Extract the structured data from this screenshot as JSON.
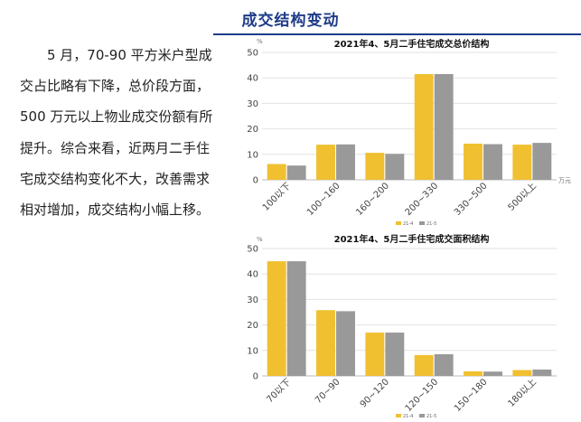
{
  "page": {
    "title": "成交结构变动",
    "paragraph": "5 月，70-90 平方米户型成交占比略有下降，总价段方面，500 万元以上物业成交份额有所提升。综合来看，近两月二手住宅成交结构变化不大，改善需求相对增加，成交结构小幅上移。"
  },
  "colors": {
    "title": "#1f3c88",
    "series_2021_4": "#f0c030",
    "series_2021_5": "#999999"
  },
  "chart_data": [
    {
      "type": "bar",
      "title": "2021年4、5月二手住宅成交总价结构",
      "yunit": "%",
      "xunit": "万元",
      "categories": [
        "100以下",
        "100~160",
        "160~200",
        "200~330",
        "330~500",
        "500以上"
      ],
      "series": [
        {
          "name": "21-4",
          "values": [
            6.2,
            13.8,
            10.6,
            41.5,
            14.2,
            13.8
          ]
        },
        {
          "name": "21-5",
          "values": [
            5.6,
            13.9,
            10.2,
            41.5,
            14.0,
            14.5
          ]
        }
      ],
      "ylim": [
        0,
        50
      ],
      "yticks": [
        0,
        10,
        20,
        30,
        40,
        50
      ],
      "grid": true,
      "legend": "bottom"
    },
    {
      "type": "bar",
      "title": "2021年4、5月二手住宅成交面积结构",
      "yunit": "%",
      "xunit": "",
      "categories": [
        "70以下",
        "70~90",
        "90~120",
        "120~150",
        "150~180",
        "180以上"
      ],
      "series": [
        {
          "name": "21-4",
          "values": [
            45.0,
            25.8,
            17.0,
            8.2,
            1.8,
            2.3
          ]
        },
        {
          "name": "21-5",
          "values": [
            45.0,
            25.4,
            17.0,
            8.5,
            1.7,
            2.5
          ]
        }
      ],
      "ylim": [
        0,
        50
      ],
      "yticks": [
        0,
        10,
        20,
        30,
        40,
        50
      ],
      "grid": true,
      "legend": "bottom"
    }
  ]
}
